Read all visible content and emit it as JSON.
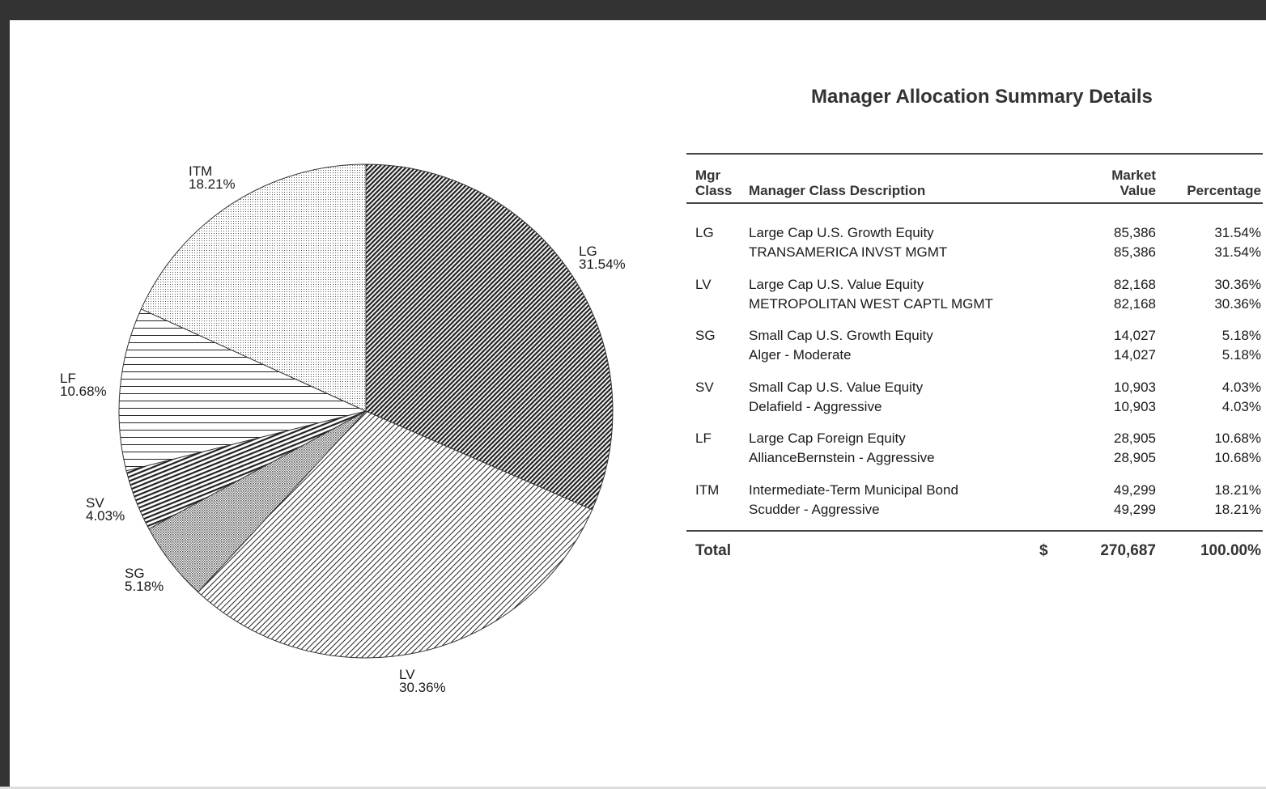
{
  "chart_data": {
    "type": "pie",
    "slices": [
      {
        "label": "LG",
        "value": 31.54,
        "value_label": "31.54%"
      },
      {
        "label": "LV",
        "value": 30.36,
        "value_label": "30.36%"
      },
      {
        "label": "SG",
        "value": 5.18,
        "value_label": "5.18%"
      },
      {
        "label": "SV",
        "value": 4.03,
        "value_label": "4.03%"
      },
      {
        "label": "LF",
        "value": 10.68,
        "value_label": "10.68%"
      },
      {
        "label": "ITM",
        "value": 18.21,
        "value_label": "18.21%"
      }
    ],
    "start": "12 o'clock",
    "direction": "clockwise",
    "fills": "black-and-white hatch patterns"
  },
  "summary": {
    "title": "Manager Allocation Summary Details",
    "headers": {
      "mgr_class_1": "Mgr",
      "mgr_class_2": "Class",
      "description": "Manager Class Description",
      "market_value_1": "Market",
      "market_value_2": "Value",
      "percentage": "Percentage"
    },
    "groups": [
      {
        "code": "LG",
        "class_desc": "Large Cap U.S. Growth Equity",
        "class_value": "85,386",
        "class_pct": "31.54%",
        "manager": "TRANSAMERICA INVST MGMT",
        "manager_value": "85,386",
        "manager_pct": "31.54%"
      },
      {
        "code": "LV",
        "class_desc": "Large Cap U.S. Value Equity",
        "class_value": "82,168",
        "class_pct": "30.36%",
        "manager": "METROPOLITAN WEST CAPTL MGMT",
        "manager_value": "82,168",
        "manager_pct": "30.36%"
      },
      {
        "code": "SG",
        "class_desc": "Small Cap U.S. Growth Equity",
        "class_value": "14,027",
        "class_pct": "5.18%",
        "manager": "Alger - Moderate",
        "manager_value": "14,027",
        "manager_pct": "5.18%"
      },
      {
        "code": "SV",
        "class_desc": "Small Cap U.S. Value Equity",
        "class_value": "10,903",
        "class_pct": "4.03%",
        "manager": "Delafield - Aggressive",
        "manager_value": "10,903",
        "manager_pct": "4.03%"
      },
      {
        "code": "LF",
        "class_desc": "Large Cap Foreign Equity",
        "class_value": "28,905",
        "class_pct": "10.68%",
        "manager": "AllianceBernstein - Aggressive",
        "manager_value": "28,905",
        "manager_pct": "10.68%"
      },
      {
        "code": "ITM",
        "class_desc": "Intermediate-Term Municipal Bond",
        "class_value": "49,299",
        "class_pct": "18.21%",
        "manager": "Scudder - Aggressive",
        "manager_value": "49,299",
        "manager_pct": "18.21%"
      }
    ],
    "total": {
      "label": "Total",
      "currency": "$",
      "value": "270,687",
      "pct": "100.00%"
    }
  }
}
